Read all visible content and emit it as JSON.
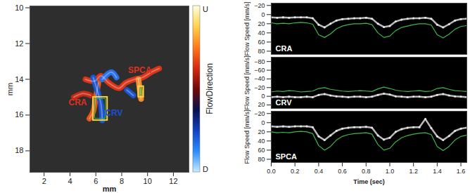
{
  "chart_data": [
    {
      "type": "flow_map",
      "xlabel": "mm",
      "ylabel": "mm",
      "xlim": [
        0.9,
        13.2
      ],
      "xticks": [
        2,
        4,
        6,
        8,
        10,
        12
      ],
      "ylim": [
        19.2,
        9.9
      ],
      "yticks": [
        10,
        12,
        14,
        16,
        18
      ],
      "vessels": [
        {
          "color": "#d8341a",
          "x": [
            5.2,
            5.9,
            6.4,
            7.0,
            7.8,
            8.3,
            9.0,
            9.6,
            10.3,
            10.9
          ],
          "y": [
            14.0,
            14.1,
            13.8,
            14.2,
            14.5,
            14.2,
            14.0,
            13.9,
            13.6,
            13.4
          ]
        },
        {
          "color": "#e2551c",
          "x": [
            6.2,
            6.0,
            5.8,
            5.5
          ],
          "y": [
            14.2,
            15.0,
            15.8,
            16.2
          ]
        },
        {
          "color": "#f08a2a",
          "x": [
            9.3,
            9.4,
            9.5
          ],
          "y": [
            14.0,
            14.6,
            15.1
          ]
        },
        {
          "color": "#c42a16",
          "x": [
            4.3,
            5.0,
            5.6
          ],
          "y": [
            15.0,
            14.8,
            14.9
          ]
        },
        {
          "color": "#1d55d0",
          "x": [
            5.8,
            6.1,
            6.4,
            6.5
          ],
          "y": [
            13.9,
            14.6,
            15.4,
            16.3
          ]
        },
        {
          "color": "#2a70e8",
          "x": [
            6.5,
            7.2,
            7.6
          ],
          "y": [
            14.0,
            13.6,
            13.9
          ]
        },
        {
          "color": "#1d55d0",
          "x": [
            8.4,
            8.9
          ],
          "y": [
            14.6,
            14.9
          ]
        }
      ],
      "boxes": [
        {
          "color": "#f2d43c",
          "x": [
            5.8,
            6.9
          ],
          "y": [
            15.0,
            16.3
          ]
        },
        {
          "color": "#f2d43c",
          "x": [
            9.3,
            9.7
          ],
          "y": [
            14.4,
            15.0
          ]
        }
      ],
      "annotations": [
        {
          "text": "CRA",
          "x": 4.6,
          "y": 15.3,
          "color": "#e03020"
        },
        {
          "text": "CRV",
          "x": 7.4,
          "y": 15.9,
          "color": "#1d4fd0"
        },
        {
          "text": "SPCA",
          "x": 9.4,
          "y": 13.5,
          "color": "#e03020"
        }
      ],
      "colorbar": {
        "label": "FlowDirection",
        "top_label": "U",
        "bottom_label": "D",
        "colors": [
          "#ffffe0",
          "#ffd24a",
          "#ff7a1a",
          "#d42a10",
          "#6e0a06",
          "#08104a",
          "#1240c0",
          "#2a8cff",
          "#c8ecff"
        ]
      }
    },
    {
      "type": "line",
      "title": "CRA",
      "ylabel": "Flow Speed [mm/s]",
      "tick_labels": "y",
      "xlim": [
        0,
        1.65
      ],
      "xticks": [
        0,
        0.2,
        0.4,
        0.6,
        0.8,
        1,
        1.2,
        1.4,
        1.6
      ],
      "ylim": [
        87,
        -25
      ],
      "yticks": [
        -20,
        0,
        20,
        40,
        60,
        80
      ],
      "x": [
        0,
        0.05,
        0.1,
        0.15,
        0.2,
        0.25,
        0.3,
        0.35,
        0.4,
        0.45,
        0.5,
        0.55,
        0.6,
        0.65,
        0.7,
        0.75,
        0.8,
        0.85,
        0.9,
        0.95,
        1.0,
        1.05,
        1.1,
        1.15,
        1.2,
        1.25,
        1.3,
        1.35,
        1.4,
        1.45,
        1.5,
        1.55,
        1.6,
        1.65
      ],
      "series": [
        {
          "color": "#e8e8e8",
          "marker": "dot",
          "values": [
            6,
            7,
            6,
            7,
            6,
            6,
            6,
            8,
            22,
            28,
            20,
            13,
            10,
            9,
            8,
            8,
            7,
            9,
            20,
            27,
            25,
            15,
            11,
            9,
            8,
            8,
            7,
            9,
            22,
            28,
            21,
            13,
            10,
            9
          ]
        },
        {
          "color": "#3cb84a",
          "line_style": "solid",
          "values": [
            18,
            20,
            19,
            20,
            18,
            17,
            18,
            21,
            44,
            50,
            42,
            31,
            25,
            22,
            20,
            20,
            19,
            22,
            40,
            50,
            47,
            35,
            28,
            25,
            22,
            20,
            20,
            23,
            44,
            51,
            43,
            32,
            26,
            24
          ]
        }
      ]
    },
    {
      "type": "line",
      "title": "CRV",
      "ylabel": "Flow Speed [mm/s]",
      "tick_labels": "y",
      "xlim": [
        0,
        1.65
      ],
      "xticks": [
        0,
        0.2,
        0.4,
        0.6,
        0.8,
        1,
        1.2,
        1.4,
        1.6
      ],
      "ylim": [
        28,
        -90
      ],
      "yticks": [
        -80,
        -60,
        -40,
        -20,
        0,
        20
      ],
      "x": [
        0,
        0.05,
        0.1,
        0.15,
        0.2,
        0.25,
        0.3,
        0.35,
        0.4,
        0.45,
        0.5,
        0.55,
        0.6,
        0.65,
        0.7,
        0.75,
        0.8,
        0.85,
        0.9,
        0.95,
        1.0,
        1.05,
        1.1,
        1.15,
        1.2,
        1.25,
        1.3,
        1.35,
        1.4,
        1.45,
        1.5,
        1.55,
        1.6,
        1.65
      ],
      "series": [
        {
          "color": "#e8e8e8",
          "marker": "dot",
          "values": [
            2,
            1,
            2,
            1,
            2,
            2,
            1,
            2,
            -3,
            -5,
            -2,
            0,
            1,
            2,
            1,
            1,
            2,
            1,
            -3,
            -6,
            -4,
            0,
            1,
            2,
            1,
            1,
            2,
            1,
            -3,
            -5,
            -2,
            0,
            1,
            2
          ]
        },
        {
          "color": "#3cb84a",
          "line_style": "solid",
          "values": [
            -10,
            -12,
            -11,
            -13,
            -12,
            -10,
            -11,
            -12,
            -18,
            -20,
            -16,
            -14,
            -12,
            -11,
            -12,
            -13,
            -12,
            -11,
            -17,
            -21,
            -18,
            -14,
            -12,
            -11,
            -12,
            -13,
            -11,
            -12,
            -18,
            -20,
            -16,
            -13,
            -12,
            -11
          ]
        }
      ]
    },
    {
      "type": "line",
      "title": "SPCA",
      "ylabel": "Flow Speed [mm/s]",
      "xlabel": "Time (sec)",
      "xlim": [
        0,
        1.65
      ],
      "xticks": [
        0,
        0.2,
        0.4,
        0.6,
        0.8,
        1,
        1.2,
        1.4,
        1.6
      ],
      "ylim": [
        87,
        -25
      ],
      "yticks": [
        -20,
        0,
        20,
        40,
        60,
        80
      ],
      "x": [
        0,
        0.05,
        0.1,
        0.15,
        0.2,
        0.25,
        0.3,
        0.35,
        0.4,
        0.45,
        0.5,
        0.55,
        0.6,
        0.65,
        0.7,
        0.75,
        0.8,
        0.85,
        0.9,
        0.95,
        1.0,
        1.05,
        1.1,
        1.15,
        1.2,
        1.25,
        1.3,
        1.35,
        1.4,
        1.45,
        1.5,
        1.55,
        1.6,
        1.65
      ],
      "series": [
        {
          "color": "#e8e8e8",
          "marker": "dot",
          "values": [
            8,
            9,
            8,
            9,
            8,
            8,
            8,
            10,
            30,
            38,
            28,
            18,
            13,
            11,
            10,
            10,
            9,
            11,
            28,
            37,
            33,
            20,
            14,
            11,
            10,
            10,
            -8,
            12,
            30,
            38,
            29,
            18,
            13,
            11
          ]
        },
        {
          "color": "#3cb84a",
          "line_style": "solid",
          "values": [
            20,
            22,
            21,
            22,
            20,
            19,
            20,
            24,
            50,
            60,
            52,
            38,
            30,
            26,
            24,
            23,
            22,
            25,
            48,
            60,
            56,
            42,
            33,
            28,
            25,
            23,
            22,
            26,
            52,
            61,
            52,
            38,
            30,
            27
          ]
        }
      ]
    }
  ]
}
